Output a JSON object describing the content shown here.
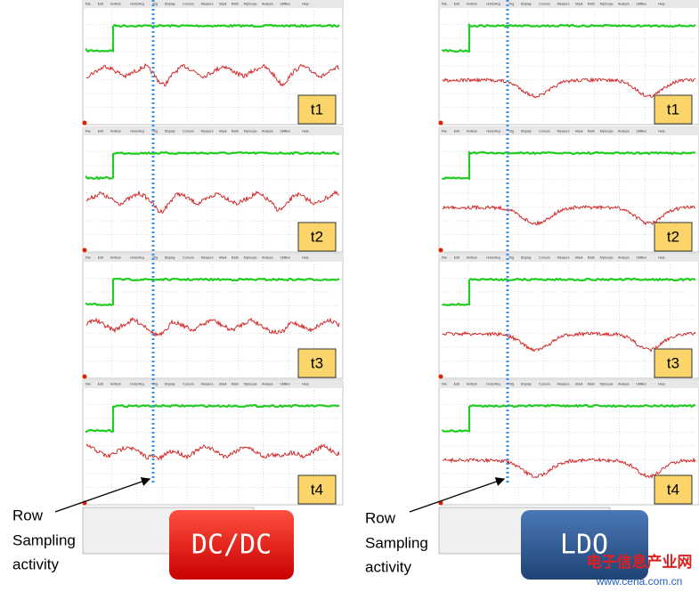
{
  "left": {
    "label": "DC/DC",
    "panels": [
      "t1",
      "t2",
      "t3",
      "t4"
    ],
    "annotation": [
      "Row",
      "Sampling",
      "activity"
    ]
  },
  "right": {
    "label": "LDO",
    "panels": [
      "t1",
      "t2",
      "t3",
      "t4"
    ],
    "annotation": [
      "Row",
      "Sampling",
      "activity"
    ]
  },
  "scope_menu": [
    "File",
    "Edit",
    "Vertical",
    "Horiz/Acq",
    "Trig",
    "Display",
    "Cursors",
    "Measure",
    "Mask",
    "Math",
    "MyScope",
    "Analyze",
    "Utilities",
    "Help"
  ],
  "watermark": {
    "title": "电子信息产业网",
    "url": "www.cena.com.cn"
  }
}
